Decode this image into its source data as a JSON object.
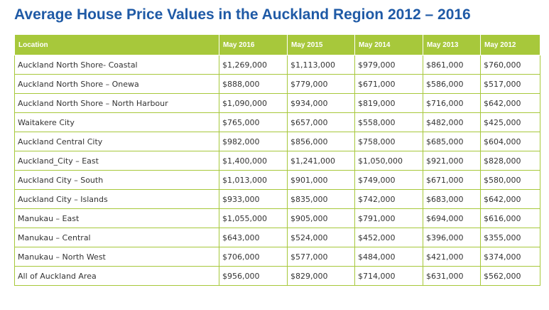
{
  "title": "Average House Price Values in the Auckland Region 2012 – 2016",
  "colors": {
    "title": "#1f5aa6",
    "header_bg": "#a7c83b",
    "border": "#a7c83b"
  },
  "table": {
    "headers": [
      "Location",
      "May 2016",
      "May 2015",
      "May 2014",
      "May 2013",
      "May 2012"
    ],
    "rows": [
      [
        "Auckland North Shore- Coastal",
        "$1,269,000",
        "$1,113,000",
        "$979,000",
        "$861,000",
        "$760,000"
      ],
      [
        "Auckland North Shore – Onewa",
        "$888,000",
        "$779,000",
        "$671,000",
        "$586,000",
        "$517,000"
      ],
      [
        "Auckland North Shore – North Harbour",
        "$1,090,000",
        "$934,000",
        "$819,000",
        "$716,000",
        "$642,000"
      ],
      [
        "Waitakere City",
        "$765,000",
        "$657,000",
        "$558,000",
        "$482,000",
        "$425,000"
      ],
      [
        "Auckland Central City",
        "$982,000",
        "$856,000",
        "$758,000",
        "$685,000",
        "$604,000"
      ],
      [
        "Auckland_City – East",
        "$1,400,000",
        "$1,241,000",
        "$1,050,000",
        "$921,000",
        "$828,000"
      ],
      [
        "Auckland City – South",
        "$1,013,000",
        "$901,000",
        "$749,000",
        "$671,000",
        "$580,000"
      ],
      [
        "Auckland City – Islands",
        "$933,000",
        "$835,000",
        "$742,000",
        "$683,000",
        "$642,000"
      ],
      [
        "Manukau – East",
        "$1,055,000",
        "$905,000",
        "$791,000",
        "$694,000",
        "$616,000"
      ],
      [
        "Manukau – Central",
        "$643,000",
        "$524,000",
        "$452,000",
        "$396,000",
        "$355,000"
      ],
      [
        "Manukau – North West",
        "$706,000",
        "$577,000",
        "$484,000",
        "$421,000",
        "$374,000"
      ],
      [
        "All of Auckland Area",
        "$956,000",
        "$829,000",
        "$714,000",
        "$631,000",
        "$562,000"
      ]
    ]
  }
}
